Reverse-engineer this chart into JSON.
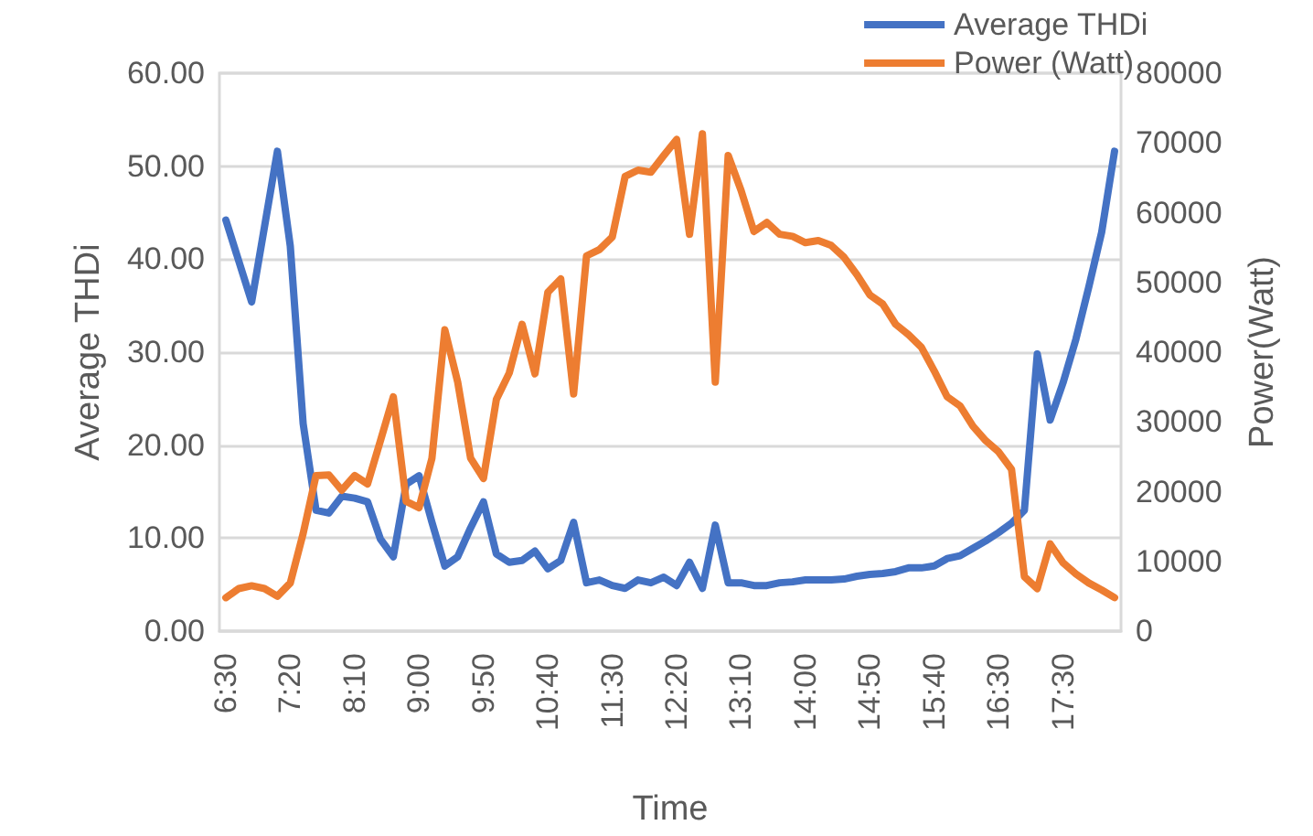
{
  "chart_data": {
    "type": "line",
    "xlabel": "Time",
    "ylabel": "Average THDi",
    "y2label": "Power(Watt)",
    "categories": [
      "6:30",
      null,
      null,
      null,
      null,
      "7:20",
      null,
      null,
      null,
      null,
      "8:10",
      null,
      null,
      null,
      null,
      "9:00",
      null,
      null,
      null,
      null,
      "9:50",
      null,
      null,
      null,
      null,
      "10:40",
      null,
      null,
      null,
      null,
      "11:30",
      null,
      null,
      null,
      null,
      "12:20",
      null,
      null,
      null,
      null,
      "13:10",
      null,
      null,
      null,
      null,
      "14:00",
      null,
      null,
      null,
      null,
      "14:50",
      null,
      null,
      null,
      null,
      "15:40",
      null,
      null,
      null,
      null,
      "16:30",
      null,
      null,
      null,
      null,
      "17:30",
      null,
      null,
      null,
      null
    ],
    "series": [
      {
        "name": "Average THDi",
        "color": "#4472c4",
        "values": [
          44.2,
          39.8,
          35.4,
          43.5,
          51.6,
          41.4,
          22.3,
          13.0,
          12.7,
          14.5,
          14.3,
          13.9,
          9.9,
          8.0,
          15.8,
          16.7,
          11.7,
          7.0,
          8.0,
          11.1,
          13.9,
          8.3,
          7.4,
          7.6,
          8.6,
          6.7,
          7.6,
          11.7,
          5.2,
          5.5,
          4.9,
          4.6,
          5.5,
          5.2,
          5.8,
          4.9,
          7.4,
          4.6,
          11.4,
          5.2,
          5.2,
          4.9,
          4.9,
          5.2,
          5.3,
          5.5,
          5.5,
          5.5,
          5.6,
          5.9,
          6.1,
          6.2,
          6.4,
          6.8,
          6.8,
          7.0,
          7.8,
          8.1,
          8.9,
          9.7,
          10.6,
          11.6,
          13.0,
          29.8,
          22.7,
          26.7,
          31.4,
          37.0,
          42.9,
          51.6
        ]
      },
      {
        "name": "Power (Watt)",
        "color": "#ed7d31",
        "axis": "y2",
        "values": [
          4800,
          6100,
          6500,
          6100,
          5000,
          6900,
          14000,
          22300,
          22400,
          20200,
          22300,
          21100,
          27300,
          33600,
          18600,
          17700,
          24800,
          43200,
          35700,
          24800,
          21900,
          33200,
          37000,
          44000,
          36900,
          48600,
          50500,
          34000,
          53800,
          54700,
          56500,
          65200,
          66100,
          65800,
          68200,
          70500,
          56900,
          71300,
          35700,
          68200,
          63200,
          57300,
          58600,
          56900,
          56600,
          55700,
          56000,
          55300,
          53600,
          51100,
          48200,
          46900,
          44000,
          42500,
          40700,
          37300,
          33600,
          32300,
          29400,
          27300,
          25700,
          23200,
          7800,
          6100,
          12500,
          9800,
          8200,
          6900,
          5900,
          4800
        ]
      }
    ],
    "ylim": [
      0,
      60
    ],
    "yticks": [
      {
        "value": 0,
        "label": "0.00"
      },
      {
        "value": 10,
        "label": "10.00"
      },
      {
        "value": 20,
        "label": "20.00"
      },
      {
        "value": 30,
        "label": "30.00"
      },
      {
        "value": 40,
        "label": "40.00"
      },
      {
        "value": 50,
        "label": "50.00"
      },
      {
        "value": 60,
        "label": "60.00"
      }
    ],
    "y2lim": [
      0,
      80000
    ],
    "y2ticks": [
      0,
      10000,
      20000,
      30000,
      40000,
      50000,
      60000,
      70000,
      80000
    ],
    "grid": "y",
    "legend": "top right",
    "marker": "none",
    "line_style": "solid"
  }
}
